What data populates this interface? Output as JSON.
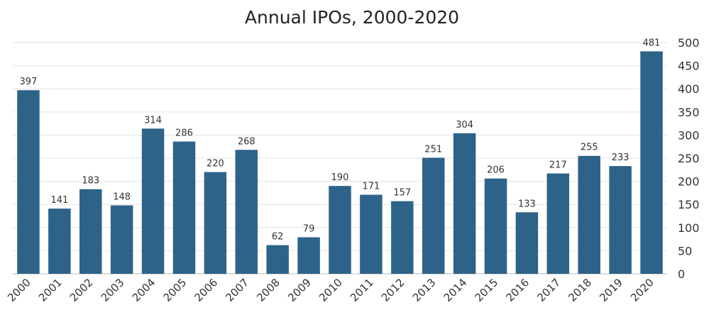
{
  "chart_data": {
    "type": "bar",
    "title": "Annual IPOs, 2000-2020",
    "xlabel": "",
    "ylabel": "",
    "categories": [
      "2000",
      "2001",
      "2002",
      "2003",
      "2004",
      "2005",
      "2006",
      "2007",
      "2008",
      "2009",
      "2010",
      "2011",
      "2012",
      "2013",
      "2014",
      "2015",
      "2016",
      "2017",
      "2018",
      "2019",
      "2020"
    ],
    "values": [
      397,
      141,
      183,
      148,
      314,
      286,
      220,
      268,
      62,
      79,
      190,
      171,
      157,
      251,
      304,
      206,
      133,
      217,
      255,
      233,
      481
    ],
    "ylim": [
      0,
      500
    ],
    "yticks": [
      0,
      50,
      100,
      150,
      200,
      250,
      300,
      350,
      400,
      450,
      500
    ],
    "y_axis_position": "right",
    "grid": true,
    "data_labels": true,
    "bar_color": "#2e6389"
  }
}
